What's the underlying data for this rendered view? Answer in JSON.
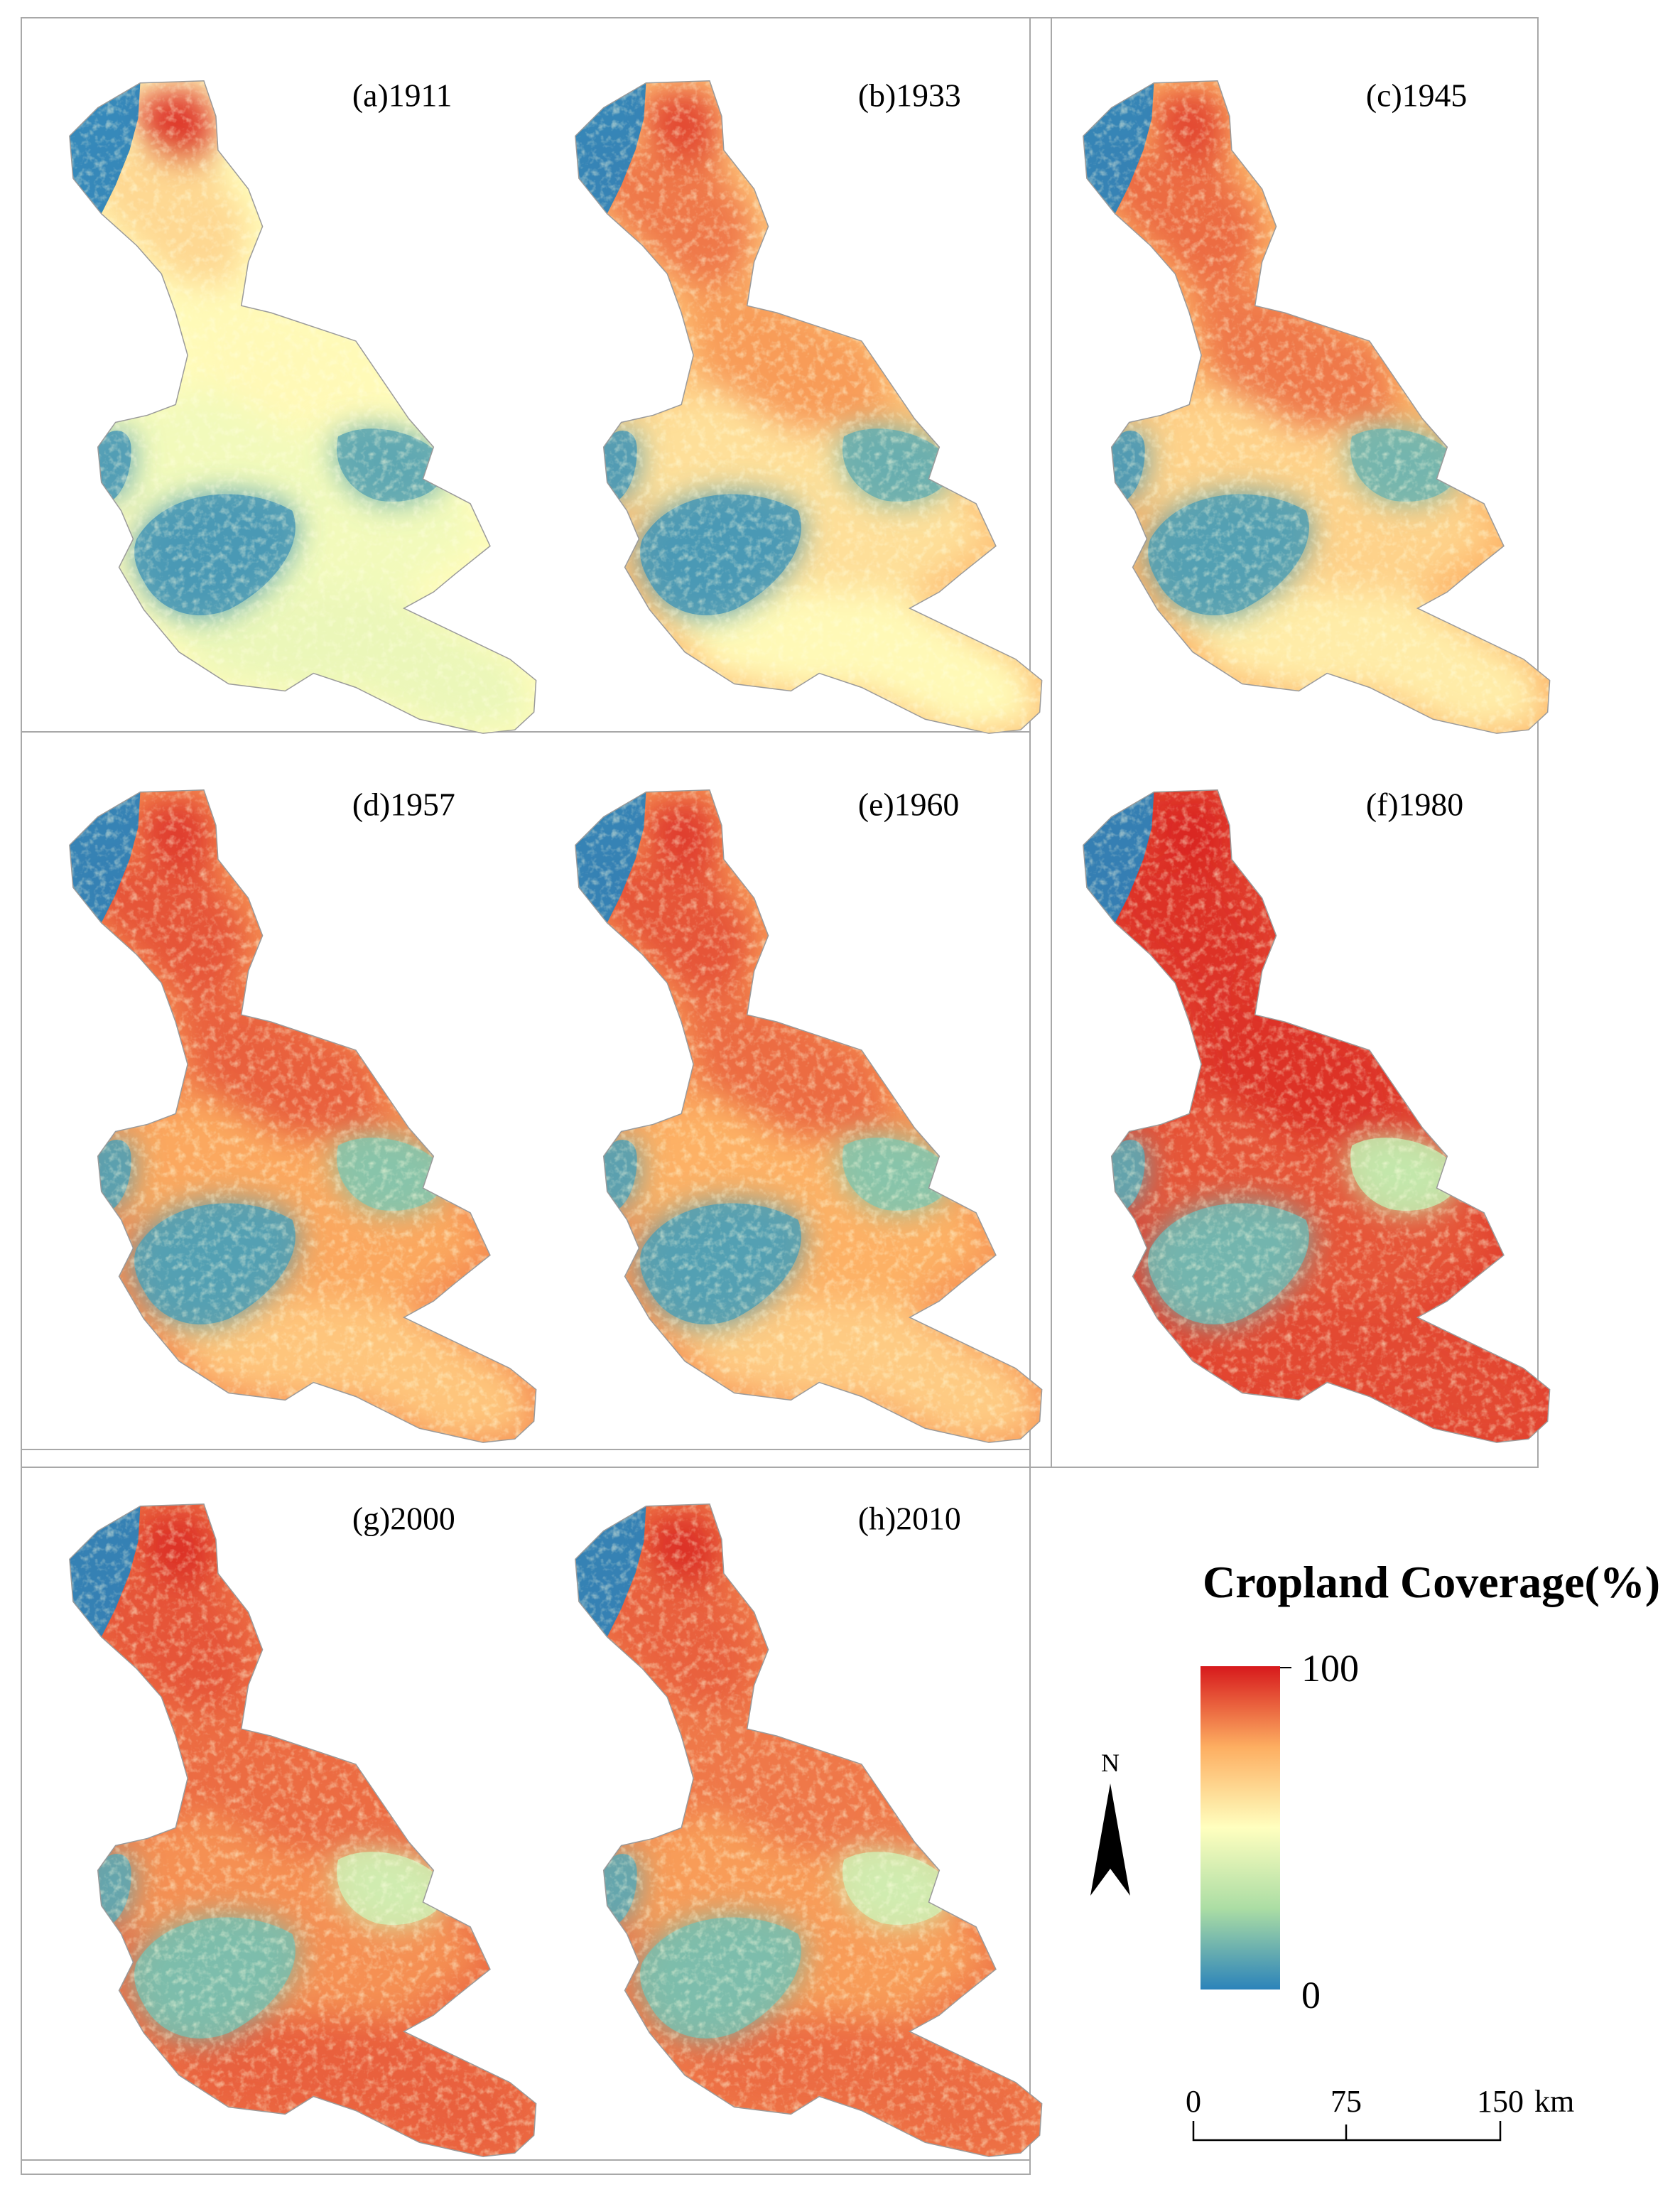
{
  "panels": [
    {
      "label": "(a)1911",
      "year": 1911,
      "region_cropland": {
        "north_tip": 95,
        "northwest_strip": 62,
        "central_band": 52,
        "middle": 46,
        "south": 44,
        "lake_west": 6,
        "lake_east": 10,
        "west_bay": 6
      }
    },
    {
      "label": "(b)1933",
      "year": 1933,
      "region_cropland": {
        "north_tip": 92,
        "northwest_strip": 84,
        "central_band": 78,
        "middle": 60,
        "south": 52,
        "lake_west": 6,
        "lake_east": 12,
        "west_bay": 6
      }
    },
    {
      "label": "(c)1945",
      "year": 1945,
      "region_cropland": {
        "north_tip": 92,
        "northwest_strip": 86,
        "central_band": 84,
        "middle": 64,
        "south": 56,
        "lake_west": 8,
        "lake_east": 14,
        "west_bay": 6
      }
    },
    {
      "label": "(d)1957",
      "year": 1957,
      "region_cropland": {
        "north_tip": 94,
        "northwest_strip": 90,
        "central_band": 88,
        "middle": 76,
        "south": 68,
        "lake_west": 8,
        "lake_east": 18,
        "west_bay": 8
      }
    },
    {
      "label": "(e)1960",
      "year": 1960,
      "region_cropland": {
        "north_tip": 94,
        "northwest_strip": 90,
        "central_band": 86,
        "middle": 74,
        "south": 66,
        "lake_west": 8,
        "lake_east": 18,
        "west_bay": 8
      }
    },
    {
      "label": "(f)1980",
      "year": 1980,
      "region_cropland": {
        "north_tip": 98,
        "northwest_strip": 96,
        "central_band": 96,
        "middle": 90,
        "south": 92,
        "lake_west": 14,
        "lake_east": 32,
        "west_bay": 10
      }
    },
    {
      "label": "(g)2000",
      "year": 2000,
      "region_cropland": {
        "north_tip": 96,
        "northwest_strip": 90,
        "central_band": 86,
        "middle": 80,
        "south": 88,
        "lake_west": 16,
        "lake_east": 36,
        "west_bay": 10
      }
    },
    {
      "label": "(h)2010",
      "year": 2010,
      "region_cropland": {
        "north_tip": 96,
        "northwest_strip": 88,
        "central_band": 84,
        "middle": 78,
        "south": 86,
        "lake_west": 16,
        "lake_east": 36,
        "west_bay": 10
      }
    }
  ],
  "legend": {
    "title": "Cropland Coverage(%)",
    "max_label": "100",
    "min_label": "0",
    "colors": [
      "#2b83ba",
      "#abdda4",
      "#ffffbf",
      "#fdae61",
      "#d7191c"
    ]
  },
  "north_arrow": {
    "label": "N"
  },
  "scale_bar": {
    "ticks": [
      "0",
      "75",
      "150"
    ],
    "unit": "km"
  },
  "colors": {
    "frame": "#a8a8a8",
    "nodata_water": "#2b83ba",
    "outline": "#9a9a9a"
  }
}
